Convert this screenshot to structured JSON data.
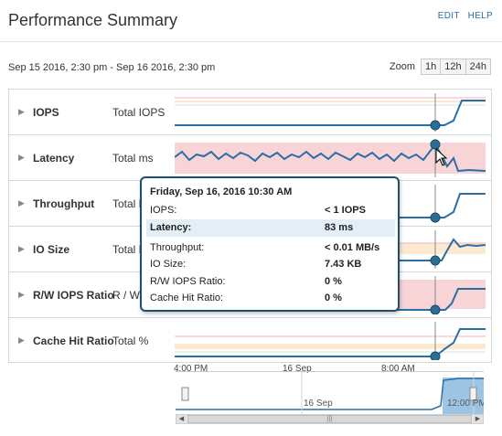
{
  "header": {
    "title": "Performance Summary",
    "edit_label": "EDIT",
    "help_label": "HELP"
  },
  "date_range": "Sep 15 2016, 2:30 pm - Sep 16 2016, 2:30 pm",
  "zoom": {
    "label": "Zoom",
    "options": [
      "1h",
      "12h",
      "24h"
    ]
  },
  "metrics": [
    {
      "name": "IOPS",
      "unit": "Total IOPS"
    },
    {
      "name": "Latency",
      "unit": "Total ms"
    },
    {
      "name": "Throughput",
      "unit": "Total MB/s"
    },
    {
      "name": "IO Size",
      "unit": "Total KB"
    },
    {
      "name": "R/W IOPS Ratio",
      "unit": "R / W"
    },
    {
      "name": "Cache Hit Ratio",
      "unit": "Total %"
    }
  ],
  "xaxis": {
    "labels": [
      "4:00 PM",
      "16 Sep",
      "8:00 AM"
    ]
  },
  "navigator": {
    "labels": [
      "16 Sep",
      "12:00 PM"
    ]
  },
  "tooltip": {
    "title": "Friday, Sep 16, 2016 10:30 AM",
    "rows": [
      {
        "label": "IOPS:",
        "value": "< 1 IOPS"
      },
      {
        "label": "Latency:",
        "value": "83 ms"
      },
      {
        "label": "Throughput:",
        "value": "< 0.01 MB/s"
      },
      {
        "label": "IO Size:",
        "value": "7.43 KB"
      },
      {
        "label": "R/W IOPS Ratio:",
        "value": "0 %"
      },
      {
        "label": "Cache Hit Ratio:",
        "value": "0 %"
      }
    ]
  },
  "colors": {
    "series_line": "#2a6ea6",
    "marker": "#2a6e96",
    "critical_band": "#f9d4d6",
    "warning_band": "#fbe9d2",
    "ok_band": "#e6f4e6",
    "link": "#2a6ea6"
  }
}
